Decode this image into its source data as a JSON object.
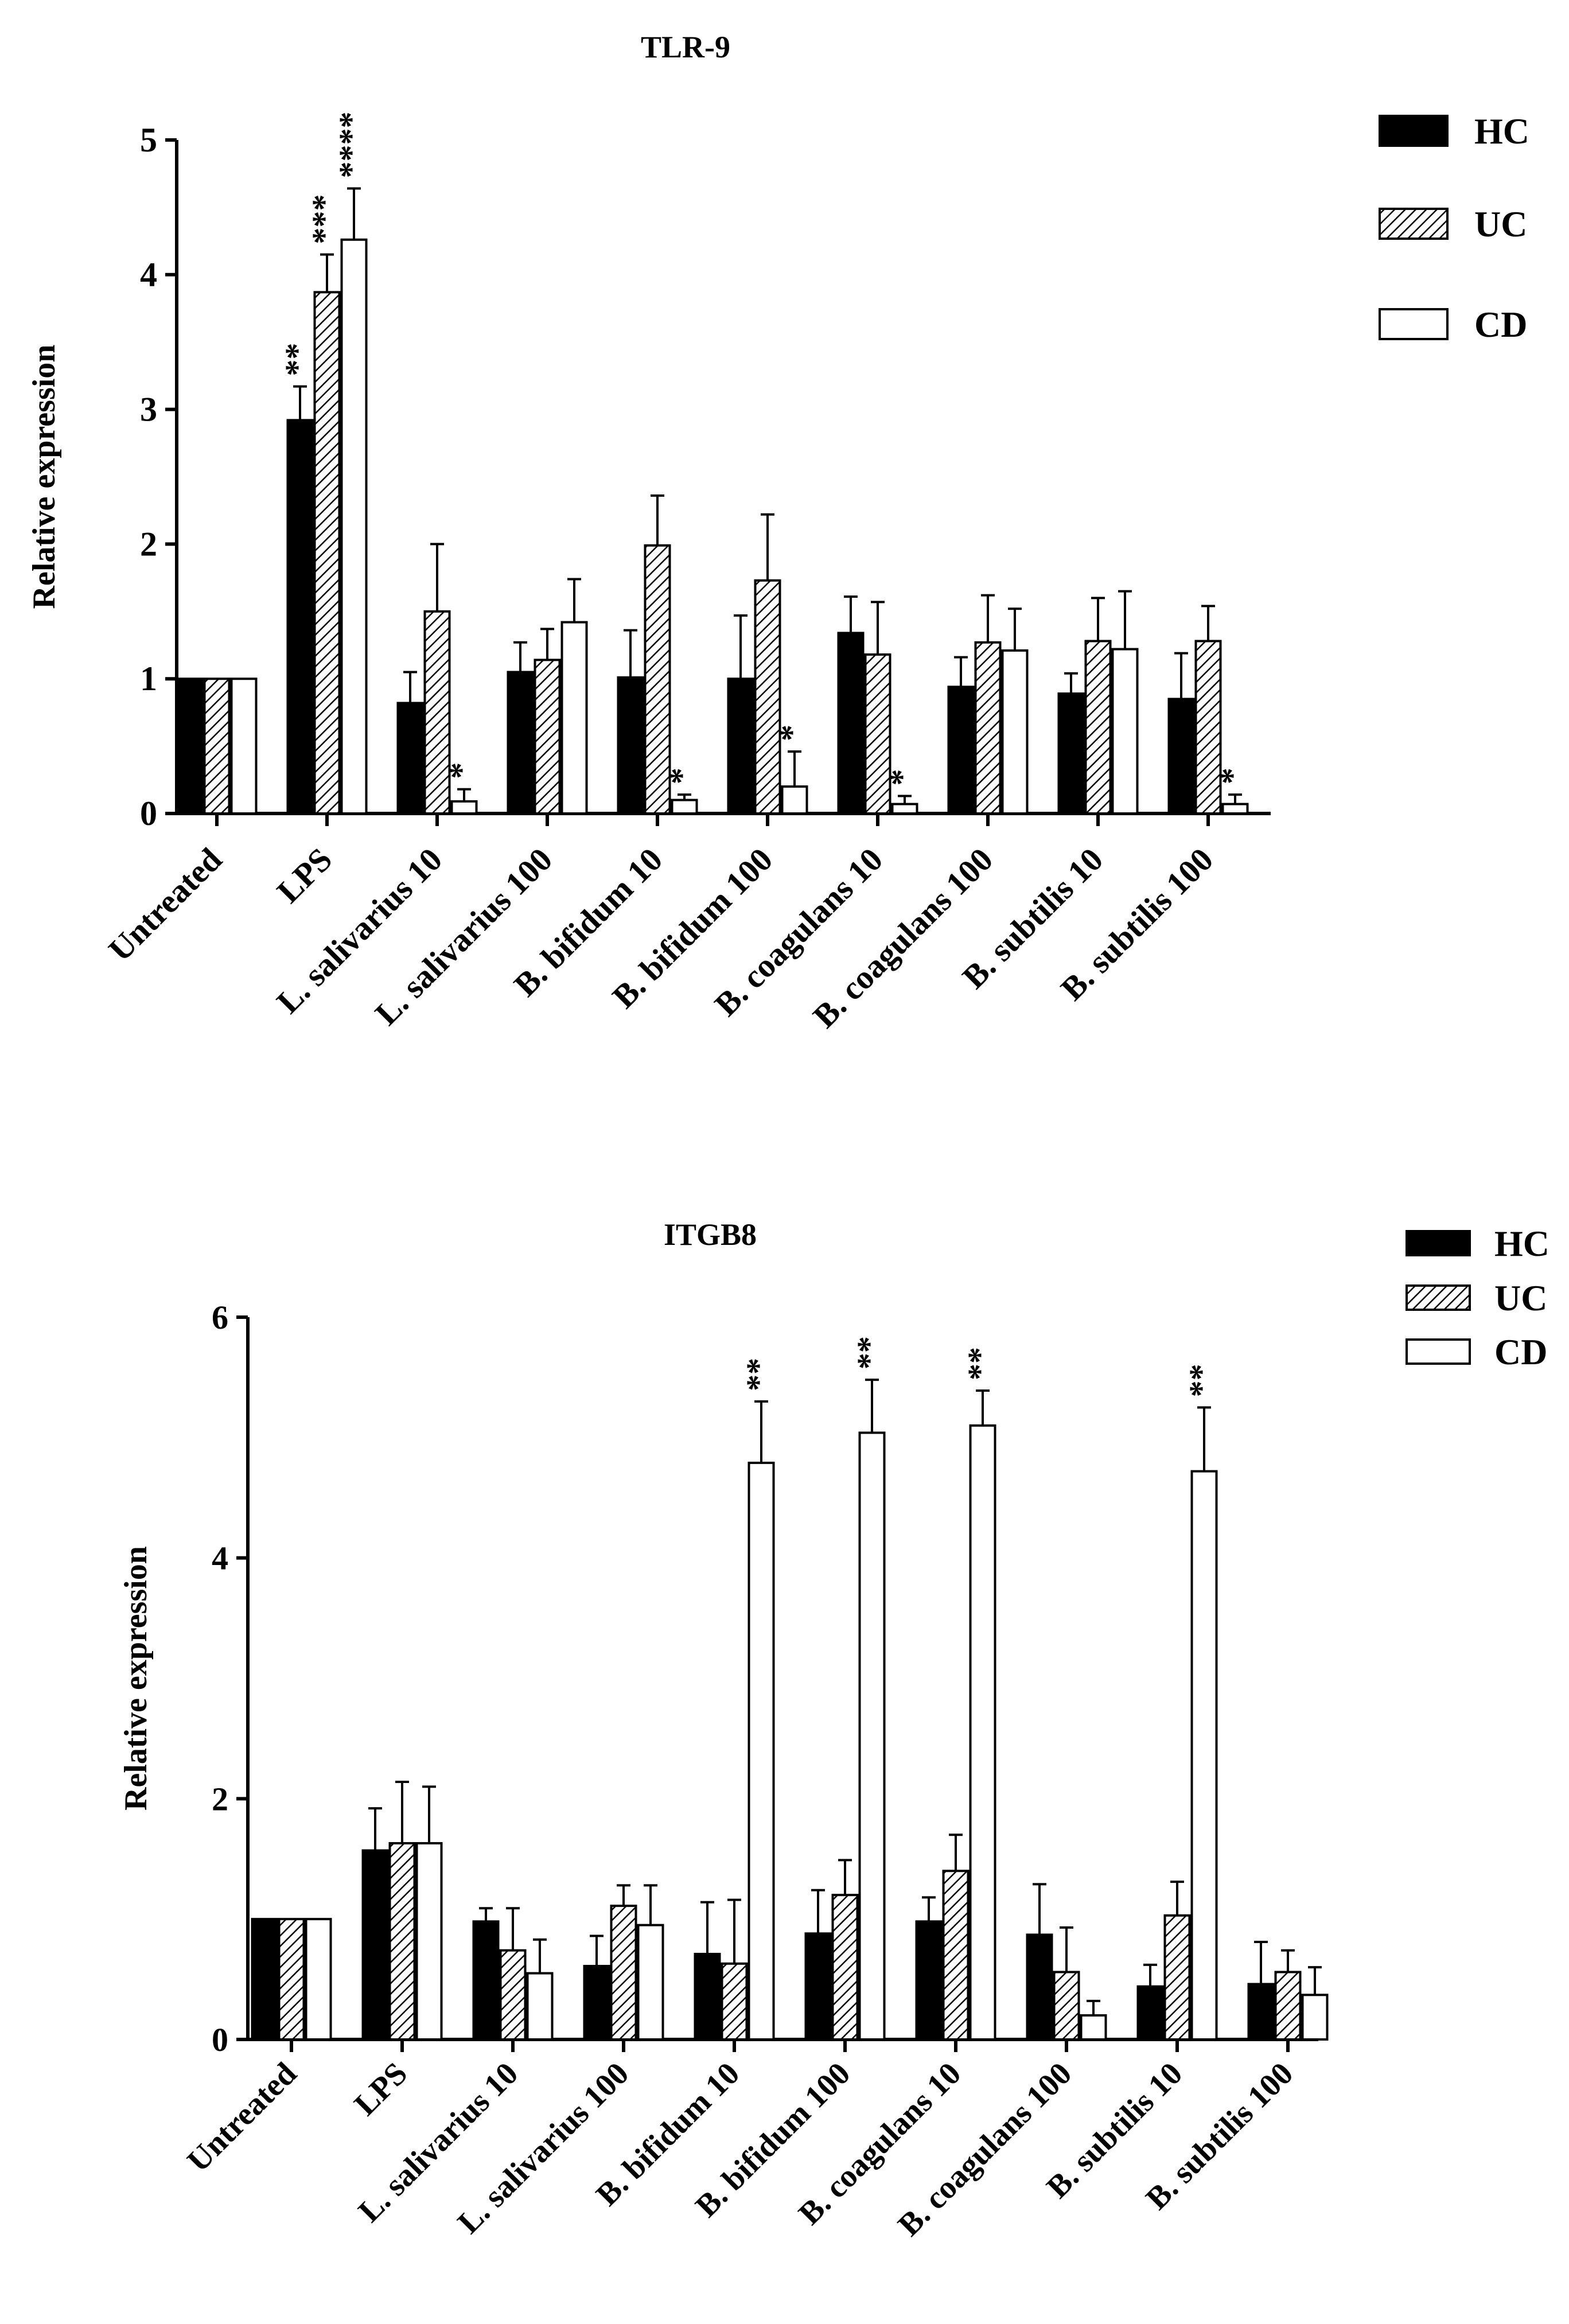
{
  "colors": {
    "hc": "#000000",
    "uc_hatch": "#000000",
    "cd": "#ffffff",
    "axis": "#000000",
    "background": "#ffffff"
  },
  "chart_data": [
    {
      "type": "bar",
      "title": "TLR-9",
      "xlabel": "",
      "ylabel": "Relative expression",
      "ylim": [
        0,
        5
      ],
      "yticks": [
        0,
        1,
        2,
        3,
        4,
        5
      ],
      "legend_position": "top-right",
      "categories": [
        "Untreated",
        "LPS",
        "L. salivarius 10",
        "L. salivarius 100",
        "B. bifidum 10",
        "B. bifidum 100",
        "B. coagulans 10",
        "B. coagulans 100",
        "B. subtilis 10",
        "B. subtilis 100"
      ],
      "series": [
        {
          "name": "HC",
          "fill": "solid",
          "values": [
            1.0,
            2.92,
            0.82,
            1.05,
            1.01,
            1.0,
            1.34,
            0.94,
            0.89,
            0.85
          ],
          "errors": [
            0,
            0.25,
            0.23,
            0.22,
            0.35,
            0.47,
            0.27,
            0.22,
            0.15,
            0.34
          ],
          "significance": [
            "",
            "**",
            "",
            "",
            "",
            "",
            "",
            "",
            "",
            ""
          ]
        },
        {
          "name": "UC",
          "fill": "hatched",
          "values": [
            1.0,
            3.87,
            1.5,
            1.14,
            1.99,
            1.73,
            1.18,
            1.27,
            1.28,
            1.28
          ],
          "errors": [
            0,
            0.28,
            0.5,
            0.23,
            0.37,
            0.49,
            0.39,
            0.35,
            0.32,
            0.26
          ],
          "significance": [
            "",
            "***",
            "",
            "",
            "",
            "",
            "",
            "",
            "",
            ""
          ]
        },
        {
          "name": "CD",
          "fill": "empty",
          "values": [
            1.0,
            4.26,
            0.09,
            1.42,
            0.1,
            0.2,
            0.07,
            1.21,
            1.22,
            0.07
          ],
          "errors": [
            0,
            0.38,
            0.09,
            0.32,
            0.04,
            0.26,
            0.06,
            0.31,
            0.43,
            0.07
          ],
          "significance": [
            "",
            "****",
            "*",
            "",
            "*",
            "*",
            "*",
            "",
            "",
            "*"
          ]
        }
      ]
    },
    {
      "type": "bar",
      "title": "ITGB8",
      "xlabel": "",
      "ylabel": "Relative expression",
      "ylim": [
        0,
        6
      ],
      "yticks": [
        0,
        2,
        4,
        6
      ],
      "legend_position": "top-right",
      "categories": [
        "Untreated",
        "LPS",
        "L. salivarius 10",
        "L. salivarius 100",
        "B. bifidum 10",
        "B. bifidum 100",
        "B. coagulans 10",
        "B. coagulans 100",
        "B. subtilis 10",
        "B. subtilis 100"
      ],
      "series": [
        {
          "name": "HC",
          "fill": "solid",
          "values": [
            1.0,
            1.57,
            0.98,
            0.61,
            0.71,
            0.88,
            0.98,
            0.87,
            0.44,
            0.46
          ],
          "errors": [
            0,
            0.35,
            0.11,
            0.25,
            0.43,
            0.36,
            0.2,
            0.42,
            0.18,
            0.35
          ],
          "significance": [
            "",
            "",
            "",
            "",
            "",
            "",
            "",
            "",
            "",
            ""
          ]
        },
        {
          "name": "UC",
          "fill": "hatched",
          "values": [
            1.0,
            1.63,
            0.74,
            1.11,
            0.63,
            1.2,
            1.4,
            0.56,
            1.03,
            0.56
          ],
          "errors": [
            0,
            0.51,
            0.35,
            0.17,
            0.53,
            0.29,
            0.3,
            0.37,
            0.28,
            0.18
          ],
          "significance": [
            "",
            "",
            "",
            "",
            "",
            "",
            "",
            "",
            "",
            ""
          ]
        },
        {
          "name": "CD",
          "fill": "empty",
          "values": [
            1.0,
            1.63,
            0.55,
            0.95,
            4.79,
            5.04,
            5.1,
            0.2,
            4.72,
            0.37
          ],
          "errors": [
            0,
            0.47,
            0.28,
            0.33,
            0.51,
            0.44,
            0.29,
            0.12,
            0.53,
            0.23
          ],
          "significance": [
            "",
            "",
            "",
            "",
            "**",
            "**",
            "**",
            "",
            "**",
            ""
          ]
        }
      ]
    }
  ]
}
